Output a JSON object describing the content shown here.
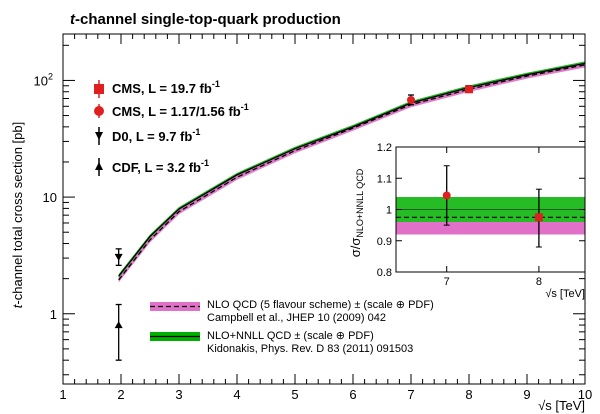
{
  "chart_data": {
    "type": "line",
    "title": "t-channel single-top-quark production",
    "title_italic_prefix": "t",
    "title_rest": "-channel single-top-quark production",
    "xlabel": "√s [TeV]",
    "ylabel": "t-channel total cross section [pb]",
    "ylabel_italic_prefix": "t",
    "ylabel_rest": "-channel total cross section [pb]",
    "xlim": [
      1,
      10
    ],
    "ylim": [
      0.25,
      250
    ],
    "yscale": "log",
    "x_ticks": [
      "1",
      "2",
      "3",
      "4",
      "5",
      "6",
      "7",
      "8",
      "9",
      "10"
    ],
    "y_ticks": [
      {
        "value": 1,
        "label": "1"
      },
      {
        "value": 10,
        "label": "10"
      },
      {
        "value": 100,
        "label": "10",
        "sup": "2"
      }
    ],
    "series": [
      {
        "name": "NLO+NNLL QCD ± (scale ⊕ PDF)",
        "color": "#00b000",
        "x": [
          1.96,
          2.5,
          3,
          4,
          5,
          6,
          7,
          8,
          9,
          10
        ],
        "y": [
          2.1,
          4.6,
          7.9,
          15.5,
          26,
          40,
          64,
          87,
          112,
          140
        ],
        "band_rel": [
          0.95,
          1.04
        ]
      },
      {
        "name": "NLO QCD (5 flavour scheme) ± (scale ⊕ PDF)",
        "color": "#e070c8",
        "x": [
          1.96,
          2.5,
          3,
          4,
          5,
          6,
          7,
          8,
          9,
          10
        ],
        "y": [
          1.95,
          4.3,
          7.5,
          14.8,
          25,
          39,
          62,
          84,
          109,
          136
        ],
        "band_rel": [
          0.95,
          1.04
        ]
      }
    ],
    "measurements": [
      {
        "name": "CMS, L = 19.7 fb",
        "sup": "-1",
        "marker": "square",
        "color": "#e02020",
        "x": 8,
        "y": 84,
        "err": [
          79,
          90
        ]
      },
      {
        "name": "CMS, L = 1.17/1.56 fb",
        "sup": "-1",
        "marker": "circle",
        "color": "#e02020",
        "x": 7,
        "y": 68,
        "err": [
          62,
          75
        ]
      },
      {
        "name": "D0, L = 9.7 fb",
        "sup": "-1",
        "marker": "triangle-down",
        "color": "#000000",
        "x": 1.96,
        "y": 3.07,
        "err": [
          2.6,
          3.6
        ]
      },
      {
        "name": "CDF, L = 3.2 fb",
        "sup": "-1",
        "marker": "triangle-up",
        "color": "#000000",
        "x": 1.96,
        "y": 0.8,
        "err": [
          0.4,
          1.2
        ]
      }
    ],
    "band_legend": [
      {
        "label": "NLO QCD (5 flavour scheme) ± (scale ⊕ PDF)",
        "ref": "Campbell et al., JHEP 10 (2009) 042",
        "fill": "#e070c8",
        "line": "#000000",
        "dash": true
      },
      {
        "label": "NLO+NNLL QCD ± (scale ⊕ PDF)",
        "ref": "Kidonakis, Phys. Rev. D 83 (2011) 091503",
        "fill": "#00b000",
        "line": "#000000",
        "dash": false
      }
    ],
    "inset": {
      "xlabel": "√s [TeV]",
      "ylabel": "σ/σ",
      "ylabel_sub": "NLO+NNLL QCD",
      "xlim": [
        6.45,
        8.5
      ],
      "ylim": [
        0.8,
        1.2
      ],
      "x_ticks": [
        "7",
        "8"
      ],
      "y_ticks": [
        "0.8",
        "0.9",
        "1",
        "1.1",
        "1.2"
      ],
      "green_band": [
        0.96,
        1.04
      ],
      "pink_band": [
        0.92,
        0.96
      ],
      "ratio_line": 0.975,
      "points": [
        {
          "x": 7,
          "y": 1.045,
          "err": [
            0.95,
            1.14
          ],
          "color": "#e02020",
          "marker": "circle"
        },
        {
          "x": 8,
          "y": 0.975,
          "err": [
            0.88,
            1.065
          ],
          "color": "#e02020",
          "marker": "square"
        }
      ]
    }
  }
}
